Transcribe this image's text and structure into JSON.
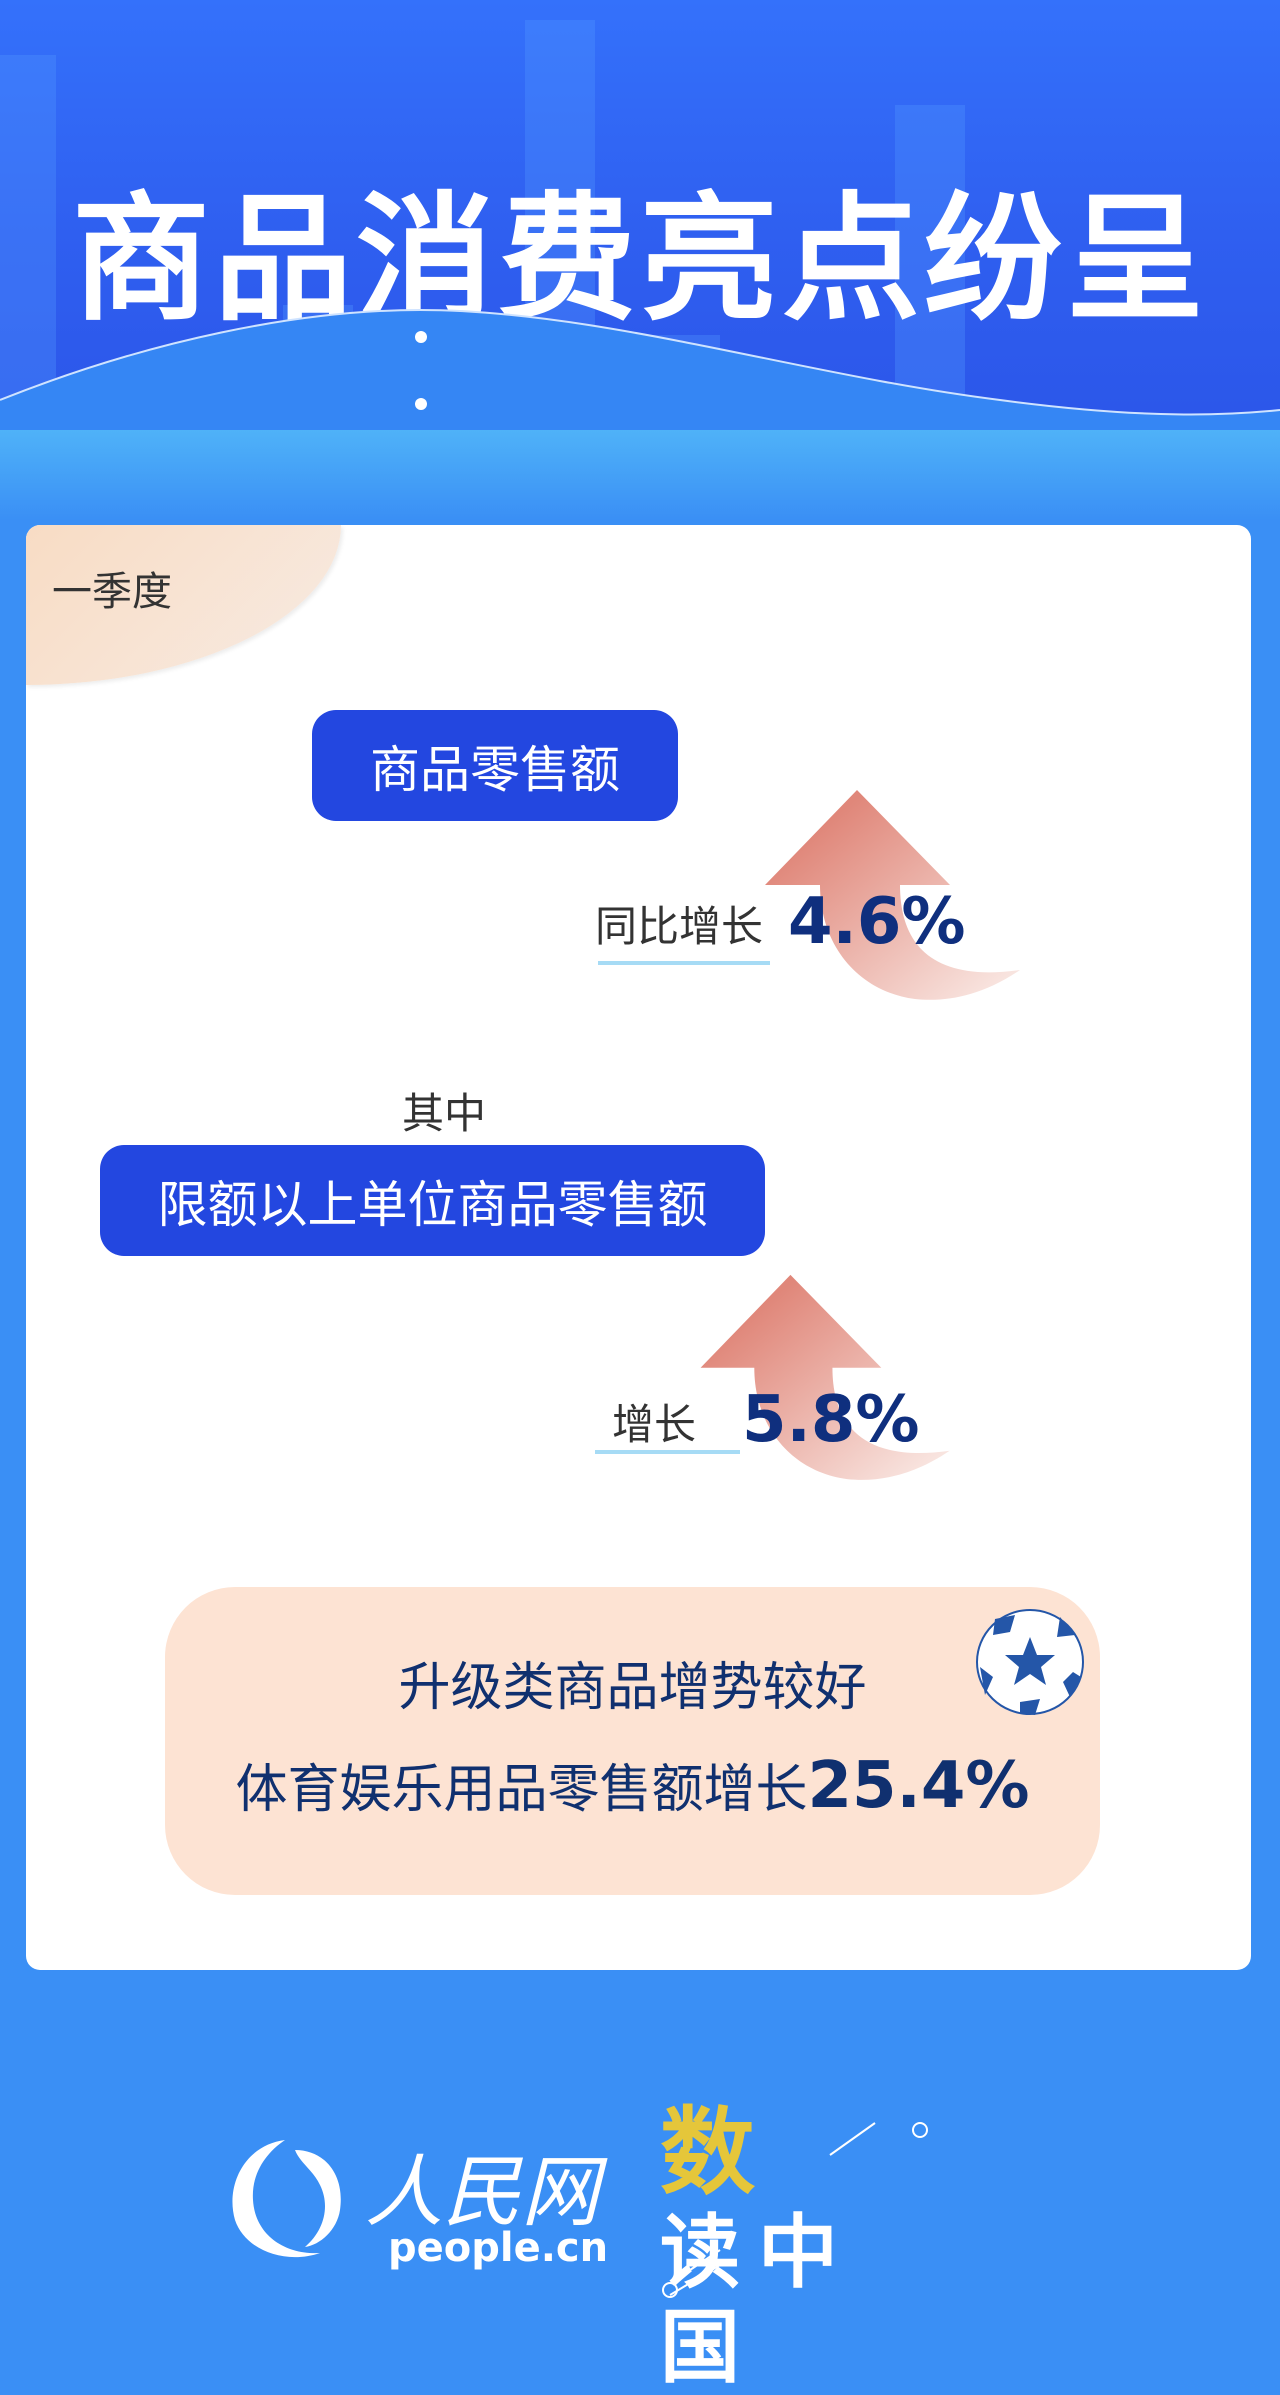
{
  "header": {
    "title": "商品消费亮点纷呈"
  },
  "card": {
    "period_tag": "一季度",
    "item1": {
      "label": "商品零售额",
      "growth_label": "同比增长",
      "growth_value": "4.6%"
    },
    "subhead": "其中",
    "item2": {
      "label": "限额以上单位商品零售额",
      "growth_label": "增长",
      "growth_value": "5.8%"
    },
    "highlight": {
      "line1": "升级类商品增势较好",
      "line2_text": "体育娱乐用品零售额增长",
      "line2_value": "25.4%",
      "icon": "soccer-ball-icon"
    }
  },
  "footer": {
    "logo1_text": "人民网",
    "logo1_domain": "people.cn",
    "logo2_text": "数读中国"
  },
  "colors": {
    "primary": "#2347e0",
    "value": "#0f2f7e",
    "accent": "#e5c63a",
    "background": "#3a8ff5"
  }
}
